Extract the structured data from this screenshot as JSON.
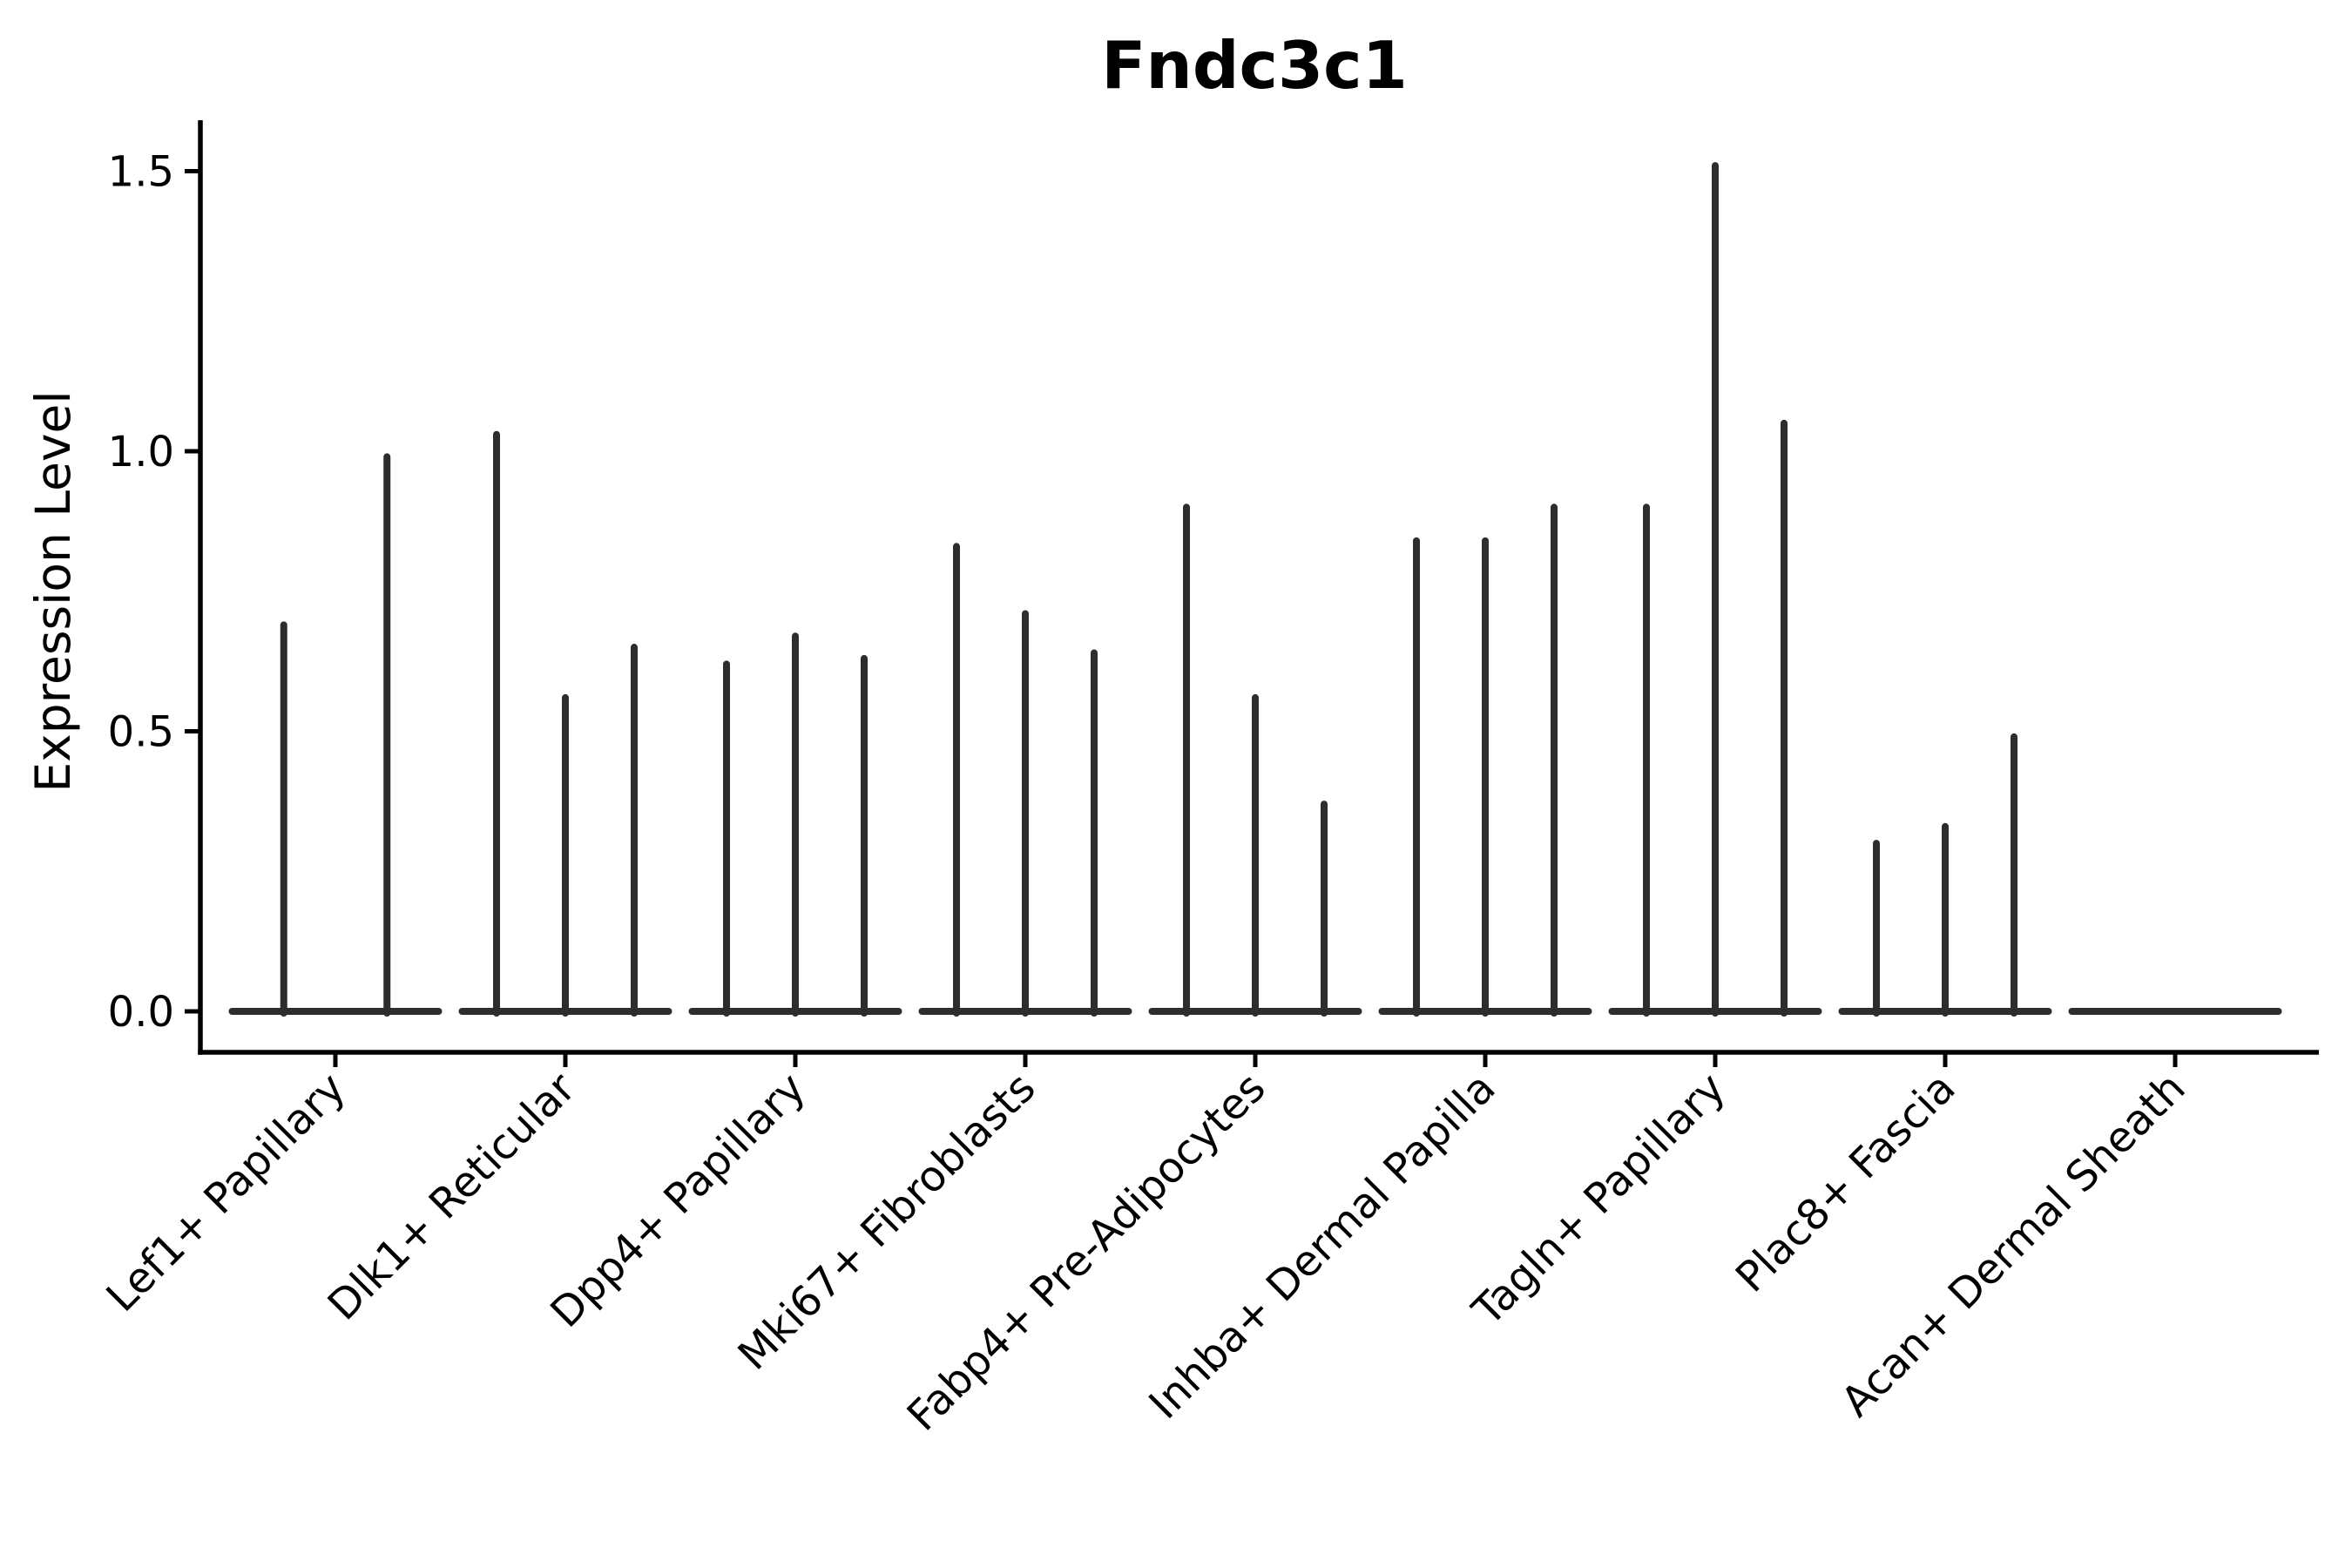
{
  "figure": {
    "title": "Fndc3c1",
    "ylabel": "Expression Level"
  },
  "chart_data": {
    "type": "violin",
    "title": "Fndc3c1",
    "xlabel": "",
    "ylabel": "Expression Level",
    "grid": false,
    "legend_position": "none",
    "ylim": [
      -0.07,
      1.59
    ],
    "yticks": [
      0.0,
      0.5,
      1.0,
      1.5
    ],
    "ytick_labels": [
      "0.0",
      "0.5",
      "1.0",
      "1.5"
    ],
    "categories": [
      "Lef1+ Papillary",
      "Dlk1+ Reticular",
      "Dpp4+ Papillary",
      "Mki67+ Fibroblasts",
      "Fabp4+ Pre-Adipocytes",
      "Inhba+ Dermal Papilla",
      "Tagln+ Papillary",
      "Plac8+ Fascia",
      "Acan+ Dermal Sheath"
    ],
    "series": [
      {
        "category": "Lef1+ Papillary",
        "violin_spike_heights": [
          0.69,
          0.99
        ]
      },
      {
        "category": "Dlk1+ Reticular",
        "violin_spike_heights": [
          1.03,
          0.56,
          0.65
        ]
      },
      {
        "category": "Dpp4+ Papillary",
        "violin_spike_heights": [
          0.62,
          0.67,
          0.63
        ]
      },
      {
        "category": "Mki67+ Fibroblasts",
        "violin_spike_heights": [
          0.83,
          0.71,
          0.64
        ]
      },
      {
        "category": "Fabp4+ Pre-Adipocytes",
        "violin_spike_heights": [
          0.9,
          0.56,
          0.37
        ]
      },
      {
        "category": "Inhba+ Dermal Papilla",
        "violin_spike_heights": [
          0.84,
          0.84,
          0.9
        ]
      },
      {
        "category": "Tagln+ Papillary",
        "violin_spike_heights": [
          0.9,
          1.51,
          1.05
        ]
      },
      {
        "category": "Plac8+ Fascia",
        "violin_spike_heights": [
          0.3,
          0.33,
          0.49
        ]
      },
      {
        "category": "Acan+ Dermal Sheath",
        "violin_spike_heights": []
      }
    ],
    "baseline_value": 0.0,
    "colors": {
      "violin": "#2d2d2f",
      "axis": "#000000",
      "text": "#000000",
      "background": "#ffffff"
    }
  }
}
